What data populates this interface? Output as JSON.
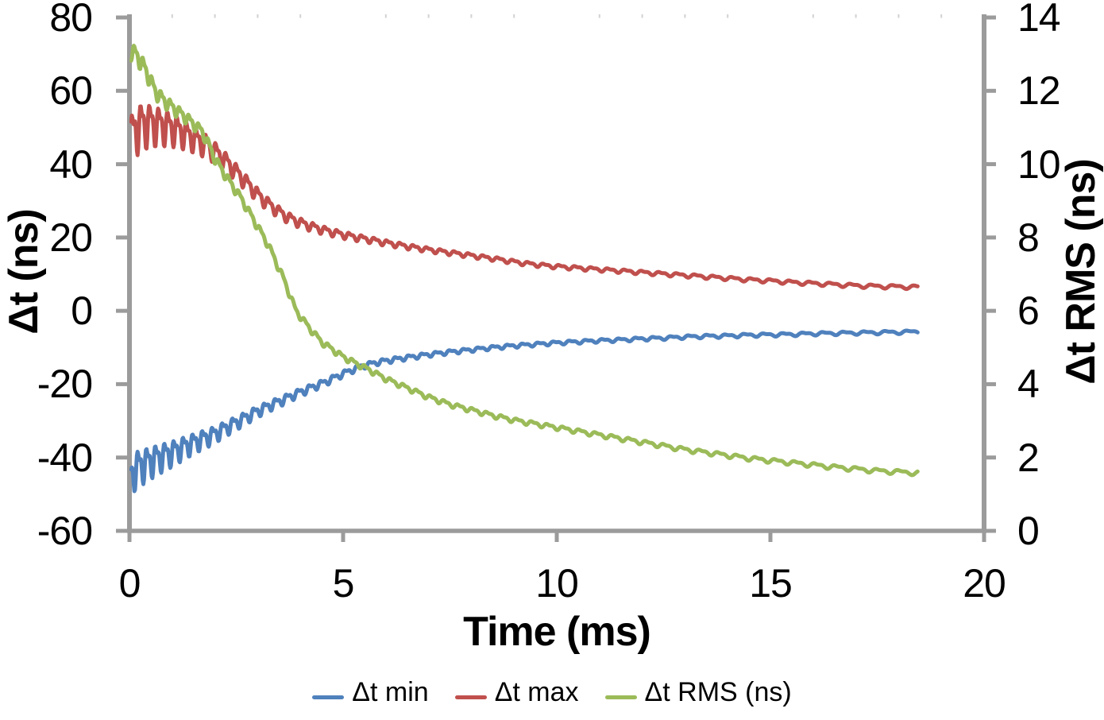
{
  "chart_data": {
    "type": "line",
    "title": "",
    "xlabel": "Time (ms)",
    "ylabel_left": "Δt (ns)",
    "ylabel_right": "Δt RMS (ns)",
    "xlim": [
      0,
      20
    ],
    "ylim_left": [
      -60,
      80
    ],
    "ylim_right": [
      0,
      14
    ],
    "x_ticks": [
      0,
      5,
      10,
      15,
      20
    ],
    "y_left_ticks": [
      80,
      60,
      40,
      20,
      0,
      -20,
      -40,
      -60
    ],
    "y_right_ticks": [
      14,
      12,
      10,
      8,
      6,
      4,
      2,
      0
    ],
    "grid": false,
    "legend_position": "bottom",
    "series": [
      {
        "name": "Δt min",
        "axis": "left",
        "color": "#4F81BD",
        "keypoints": [
          [
            0.04,
            -45.0
          ],
          [
            0.1,
            -43.5
          ],
          [
            0.2,
            -42.4
          ],
          [
            0.35,
            -41.6
          ],
          [
            0.5,
            -40.8
          ],
          [
            0.7,
            -39.8
          ],
          [
            1.0,
            -38.5
          ],
          [
            1.3,
            -36.9
          ],
          [
            1.6,
            -35.4
          ],
          [
            2.0,
            -33.5
          ],
          [
            2.3,
            -31.6
          ],
          [
            2.6,
            -29.8
          ],
          [
            3.0,
            -27.3
          ],
          [
            3.3,
            -25.7
          ],
          [
            3.6,
            -24.2
          ],
          [
            4.0,
            -22.1
          ],
          [
            4.3,
            -20.7
          ],
          [
            4.6,
            -19.3
          ],
          [
            5.0,
            -17.1
          ],
          [
            5.4,
            -15.2
          ],
          [
            5.8,
            -14.0
          ],
          [
            6.0,
            -13.6
          ],
          [
            6.5,
            -12.7
          ],
          [
            7.0,
            -11.9
          ],
          [
            7.5,
            -11.2
          ],
          [
            8.0,
            -10.6
          ],
          [
            8.5,
            -10.0
          ],
          [
            9.0,
            -9.5
          ],
          [
            9.5,
            -9.1
          ],
          [
            10.0,
            -8.7
          ],
          [
            10.5,
            -8.4
          ],
          [
            11.0,
            -8.1
          ],
          [
            11.5,
            -7.9
          ],
          [
            12.0,
            -7.6
          ],
          [
            12.5,
            -7.4
          ],
          [
            13.0,
            -7.1
          ],
          [
            13.5,
            -6.9
          ],
          [
            14.0,
            -6.8
          ],
          [
            14.5,
            -6.6
          ],
          [
            15.0,
            -6.5
          ],
          [
            15.5,
            -6.4
          ],
          [
            16.0,
            -6.2
          ],
          [
            16.5,
            -6.1
          ],
          [
            17.0,
            -6.0
          ],
          [
            17.5,
            -5.9
          ],
          [
            18.0,
            -5.8
          ],
          [
            18.45,
            -5.7
          ]
        ],
        "noise": {
          "a0": 5.5,
          "decay": 2.0,
          "a1": 0.5,
          "p0": 0.2,
          "p1": 0.017,
          "phase": 2.4
        }
      },
      {
        "name": "Δt max",
        "axis": "left",
        "color": "#C0504D",
        "keypoints": [
          [
            0.04,
            47.0
          ],
          [
            0.15,
            50.0
          ],
          [
            0.3,
            51.0
          ],
          [
            0.5,
            51.2
          ],
          [
            0.8,
            50.6
          ],
          [
            1.0,
            50.0
          ],
          [
            1.2,
            49.0
          ],
          [
            1.5,
            47.2
          ],
          [
            1.8,
            45.3
          ],
          [
            2.0,
            43.5
          ],
          [
            2.2,
            41.5
          ],
          [
            2.4,
            39.2
          ],
          [
            2.6,
            36.8
          ],
          [
            2.8,
            34.3
          ],
          [
            3.0,
            31.8
          ],
          [
            3.2,
            29.7
          ],
          [
            3.45,
            27.5
          ],
          [
            3.7,
            25.6
          ],
          [
            4.0,
            24.1
          ],
          [
            4.3,
            22.9
          ],
          [
            4.6,
            21.9
          ],
          [
            5.0,
            20.8
          ],
          [
            5.3,
            20.1
          ],
          [
            5.6,
            19.5
          ],
          [
            6.0,
            18.6
          ],
          [
            6.5,
            17.6
          ],
          [
            7.0,
            16.7
          ],
          [
            7.5,
            15.9
          ],
          [
            8.0,
            15.1
          ],
          [
            8.5,
            14.3
          ],
          [
            9.0,
            13.4
          ],
          [
            9.3,
            12.9
          ],
          [
            9.7,
            12.4
          ],
          [
            10.0,
            12.1
          ],
          [
            10.5,
            11.7
          ],
          [
            11.0,
            11.3
          ],
          [
            11.5,
            10.9
          ],
          [
            12.0,
            10.5
          ],
          [
            12.5,
            10.1
          ],
          [
            13.0,
            9.7
          ],
          [
            13.5,
            9.3
          ],
          [
            14.0,
            8.9
          ],
          [
            14.5,
            8.5
          ],
          [
            15.0,
            8.2
          ],
          [
            15.5,
            7.8
          ],
          [
            16.0,
            7.5
          ],
          [
            16.5,
            7.2
          ],
          [
            17.0,
            6.9
          ],
          [
            17.5,
            6.7
          ],
          [
            18.0,
            6.6
          ],
          [
            18.45,
            6.5
          ]
        ],
        "noise": {
          "a0": 7.5,
          "decay": 1.9,
          "a1": 0.55,
          "p0": 0.2,
          "p1": 0.017,
          "phase": 0.3
        }
      },
      {
        "name": "Δt RMS (ns)",
        "axis": "right",
        "color": "#9BBB59",
        "keypoints": [
          [
            0.04,
            13.1
          ],
          [
            0.15,
            13.0
          ],
          [
            0.3,
            12.75
          ],
          [
            0.45,
            12.4
          ],
          [
            0.6,
            12.0
          ],
          [
            0.8,
            11.75
          ],
          [
            1.07,
            11.5
          ],
          [
            1.3,
            11.3
          ],
          [
            1.5,
            11.1
          ],
          [
            1.7,
            10.9
          ],
          [
            1.85,
            10.55
          ],
          [
            2.0,
            10.15
          ],
          [
            2.3,
            9.6
          ],
          [
            2.6,
            9.1
          ],
          [
            2.9,
            8.5
          ],
          [
            3.25,
            7.8
          ],
          [
            3.6,
            6.9
          ],
          [
            3.9,
            6.0
          ],
          [
            4.2,
            5.55
          ],
          [
            4.5,
            5.15
          ],
          [
            5.0,
            4.75
          ],
          [
            5.3,
            4.57
          ],
          [
            5.6,
            4.4
          ],
          [
            6.0,
            4.15
          ],
          [
            6.5,
            3.9
          ],
          [
            7.0,
            3.65
          ],
          [
            7.5,
            3.45
          ],
          [
            8.0,
            3.3
          ],
          [
            8.5,
            3.15
          ],
          [
            9.0,
            3.02
          ],
          [
            9.5,
            2.92
          ],
          [
            10.0,
            2.82
          ],
          [
            10.5,
            2.72
          ],
          [
            11.0,
            2.62
          ],
          [
            11.5,
            2.52
          ],
          [
            12.0,
            2.42
          ],
          [
            12.5,
            2.32
          ],
          [
            13.0,
            2.22
          ],
          [
            13.5,
            2.14
          ],
          [
            14.0,
            2.06
          ],
          [
            14.5,
            1.98
          ],
          [
            15.0,
            1.92
          ],
          [
            15.5,
            1.86
          ],
          [
            16.0,
            1.8
          ],
          [
            16.5,
            1.74
          ],
          [
            17.0,
            1.69
          ],
          [
            17.5,
            1.64
          ],
          [
            18.0,
            1.61
          ],
          [
            18.45,
            1.58
          ]
        ],
        "noise": {
          "a0": 0.2,
          "decay": 2.2,
          "a1": 0.065,
          "p0": 0.2,
          "p1": 0.017,
          "phase": 5.0
        }
      }
    ]
  },
  "styles": {
    "axis_color": "#9b9b9b",
    "minor_tick_color": "#d2d2d2",
    "text_color": "#000000",
    "background": "#ffffff"
  }
}
